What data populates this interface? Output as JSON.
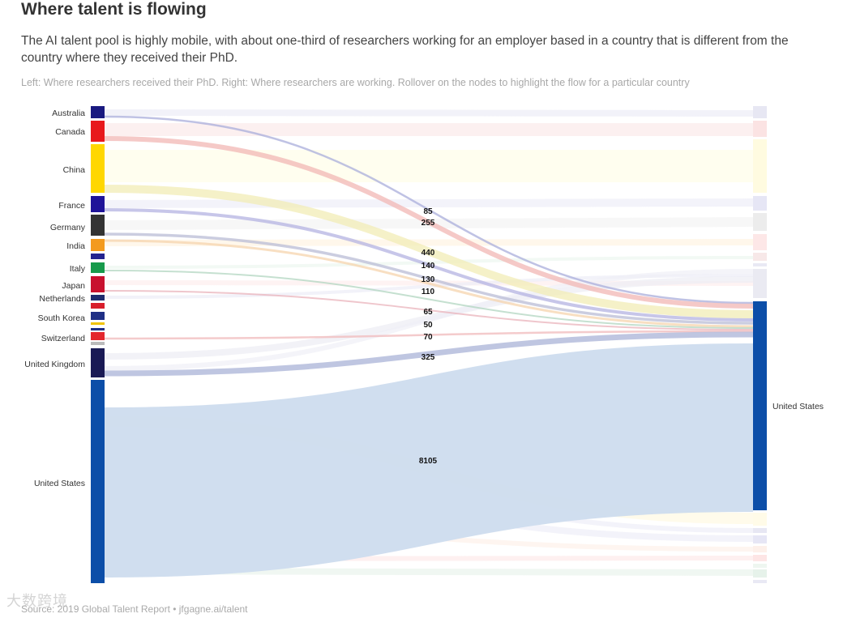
{
  "title": "Where talent is flowing",
  "subtitle": "The AI talent pool is highly mobile, with about one-third of researchers working for an employer based in a country that is different from the country where they received their PhD.",
  "note": "Left: Where researchers received their PhD. Right: Where researchers are working. Rollover on the nodes to highlight the flow for a particular country",
  "source": "Source: 2019 Global Talent Report • jfgagne.ai/talent",
  "watermark": "大数跨境",
  "chart_data": {
    "type": "sankey",
    "target": "United States",
    "flows": [
      {
        "source": "Australia",
        "value": 85,
        "color": "#1a1a80"
      },
      {
        "source": "Canada",
        "value": 255,
        "color": "#e8191c"
      },
      {
        "source": "China",
        "value": 440,
        "color": "#ffd700"
      },
      {
        "source": "France",
        "value": 140,
        "color": "#1f1399"
      },
      {
        "source": "Germany",
        "value": 130,
        "color": "#333333"
      },
      {
        "source": "India",
        "value": 110,
        "color": "#f39a1e"
      },
      {
        "source": "Italy",
        "value": 65,
        "color": "#179a4b"
      },
      {
        "source": "Japan",
        "value": 50,
        "color": "#c8102e"
      },
      {
        "source": "Switzerland",
        "value": 70,
        "color": "#e3262d"
      },
      {
        "source": "United Kingdom",
        "value": 325,
        "color": "#1a1a55"
      },
      {
        "source": "United States",
        "value": 8105,
        "color": "#0c4ea8"
      }
    ],
    "left_nodes": [
      "Australia",
      "Canada",
      "China",
      "France",
      "Germany",
      "India",
      "Italy",
      "Japan",
      "Netherlands",
      "South Korea",
      "Switzerland",
      "United Kingdom",
      "United States"
    ],
    "right_nodes": [
      "United States"
    ]
  }
}
